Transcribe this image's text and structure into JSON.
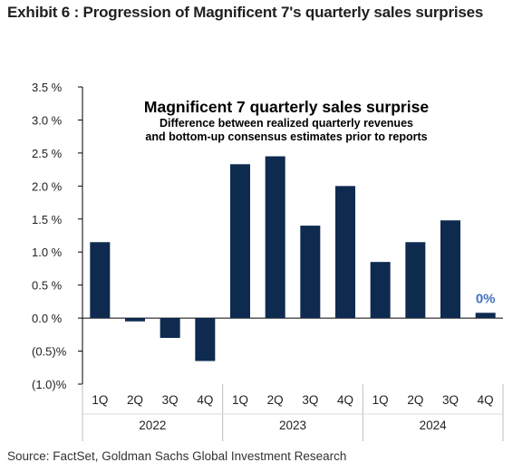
{
  "exhibit_title": "Exhibit 6 : Progression of Magnificent 7's quarterly sales surprises",
  "source": "Source: FactSet, Goldman Sachs Global Investment Research",
  "colors": {
    "bar": "#0e2a4f",
    "axis": "#000000",
    "text": "#222222",
    "background": "#ffffff"
  },
  "chart_data": {
    "type": "bar",
    "title": "Magnificent 7 quarterly sales surprise",
    "subtitle": "Difference between realized quarterly revenues and bottom-up consensus estimates prior to reports",
    "subtitle_lines": [
      "Difference between realized quarterly revenues",
      "and bottom-up  consensus  estimates  prior to reports"
    ],
    "categories": [
      "1Q",
      "2Q",
      "3Q",
      "4Q",
      "1Q",
      "2Q",
      "3Q",
      "4Q",
      "1Q",
      "2Q",
      "3Q",
      "4Q"
    ],
    "years": [
      "2022",
      "2023",
      "2024"
    ],
    "values": [
      1.15,
      -0.05,
      -0.3,
      -0.65,
      2.33,
      2.45,
      1.4,
      2.0,
      0.85,
      1.15,
      1.48,
      0.08
    ],
    "annotations": [
      {
        "index": 11,
        "text": "0%"
      }
    ],
    "ylim": [
      -1.0,
      3.5
    ],
    "yticks": [
      3.5,
      3.0,
      2.5,
      2.0,
      1.5,
      1.0,
      0.5,
      0.0,
      -0.5,
      -1.0
    ],
    "ytick_labels": [
      "3.5 %",
      "3.0 %",
      "2.5 %",
      "2.0 %",
      "1.5 %",
      "1.0 %",
      "0.5 %",
      "0.0 %",
      "(0.5)%",
      "(1.0)%"
    ],
    "xlabel": "",
    "ylabel": "",
    "grid": false,
    "legend": "none"
  }
}
